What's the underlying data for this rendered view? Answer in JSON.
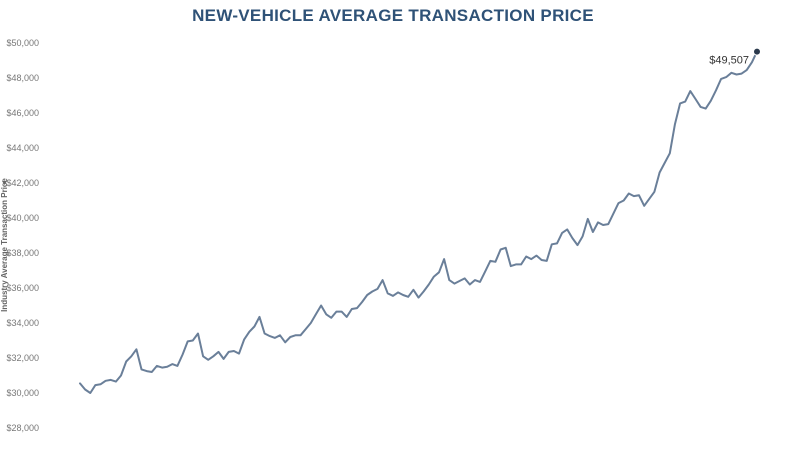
{
  "chart_data": {
    "type": "line",
    "title": "NEW-VEHICLE AVERAGE TRANSACTION PRICE",
    "ylabel": "Industry Average Transaction Price",
    "xlabel": "",
    "ylim": [
      28000,
      50000
    ],
    "yticks": [
      "$28,000",
      "$30,000",
      "$32,000",
      "$34,000",
      "$36,000",
      "$38,000",
      "$40,000",
      "$42,000",
      "$44,000",
      "$46,000",
      "$48,000",
      "$50,000"
    ],
    "grid": false,
    "series_color": "#6a7f99",
    "marker_color": "#2b3a4d",
    "annotation": "$49,507",
    "series": [
      {
        "values": [
          30550,
          30200,
          30000,
          30450,
          30500,
          30700,
          30750,
          30650,
          31000,
          31800,
          32100,
          32500,
          31350,
          31250,
          31200,
          31550,
          31450,
          31500,
          31650,
          31550,
          32200,
          32950,
          33000,
          33400,
          32100,
          31900,
          32100,
          32350,
          31950,
          32350,
          32400,
          32250,
          33050,
          33500,
          33800,
          34350,
          33400,
          33250,
          33150,
          33300,
          32900,
          33200,
          33300,
          33300,
          33650,
          34000,
          34500,
          35000,
          34500,
          34300,
          34650,
          34650,
          34350,
          34800,
          34850,
          35200,
          35600,
          35800,
          35950,
          36450,
          35700,
          35550,
          35750,
          35600,
          35500,
          35900,
          35450,
          35800,
          36200,
          36650,
          36900,
          37650,
          36450,
          36250,
          36400,
          36550,
          36200,
          36450,
          36350,
          36950,
          37550,
          37500,
          38200,
          38300,
          37250,
          37350,
          37350,
          37800,
          37650,
          37850,
          37600,
          37550,
          38500,
          38550,
          39150,
          39350,
          38850,
          38450,
          38950,
          39950,
          39200,
          39750,
          39600,
          39650,
          40250,
          40850,
          41000,
          41400,
          41250,
          41300,
          40700,
          41100,
          41500,
          42600,
          43150,
          43700,
          45350,
          46550,
          46650,
          47250,
          46800,
          46350,
          46250,
          46700,
          47300,
          47950,
          48050,
          48300,
          48200,
          48250,
          48450,
          48900,
          49507
        ]
      }
    ]
  }
}
